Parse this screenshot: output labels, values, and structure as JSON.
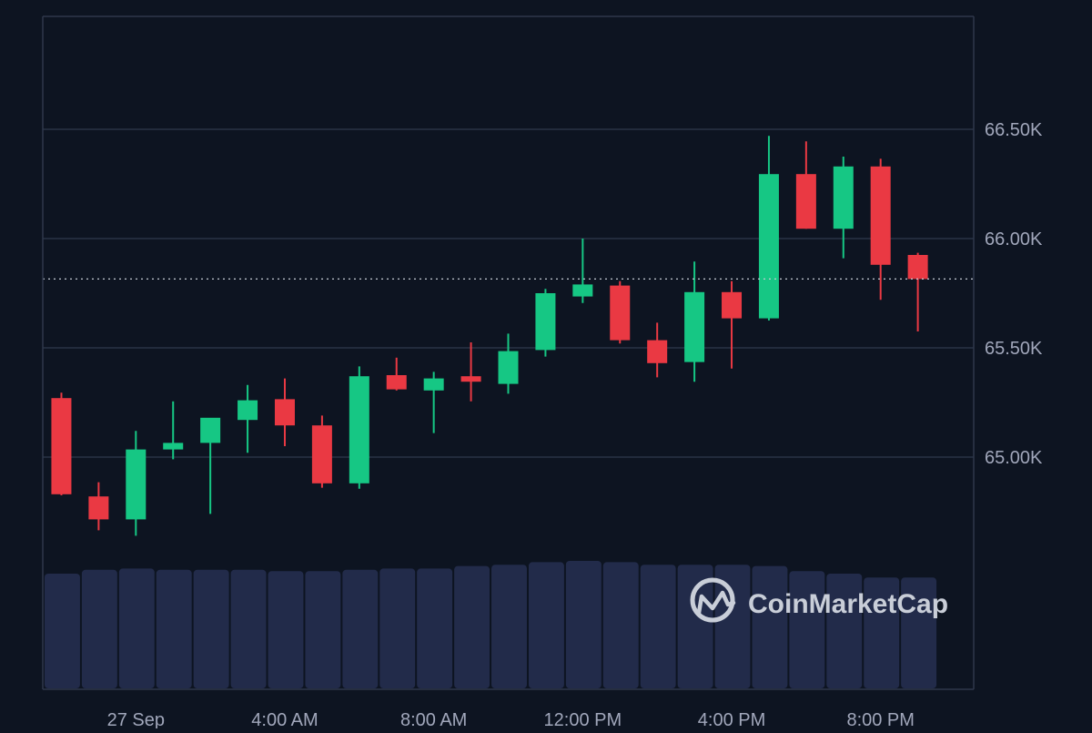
{
  "chart_data": {
    "type": "candlestick",
    "title": "",
    "xlabel": "",
    "ylabel": "",
    "x_ticks": [
      "27 Sep",
      "4:00 AM",
      "8:00 AM",
      "12:00 PM",
      "4:00 PM",
      "8:00 PM"
    ],
    "y_ticks": [
      {
        "value": 65000,
        "label": "65.00K"
      },
      {
        "value": 65500,
        "label": "65.50K"
      },
      {
        "value": 66000,
        "label": "66.00K"
      },
      {
        "value": 66500,
        "label": "66.50K"
      }
    ],
    "ylim": [
      64500,
      67000
    ],
    "current_price": 65815,
    "up_color": "#16c784",
    "down_color": "#ea3943",
    "volume_color": "#222b4a",
    "grid": true,
    "candles": [
      {
        "open": 65270,
        "high": 65295,
        "low": 64825,
        "close": 64830
      },
      {
        "open": 64820,
        "high": 64885,
        "low": 64665,
        "close": 64715
      },
      {
        "open": 64715,
        "high": 65120,
        "low": 64640,
        "close": 65035
      },
      {
        "open": 65035,
        "high": 65255,
        "low": 64990,
        "close": 65065
      },
      {
        "open": 65065,
        "high": 65175,
        "low": 64740,
        "close": 65180
      },
      {
        "open": 65170,
        "high": 65330,
        "low": 65020,
        "close": 65260
      },
      {
        "open": 65265,
        "high": 65360,
        "low": 65050,
        "close": 65145
      },
      {
        "open": 65145,
        "high": 65190,
        "low": 64860,
        "close": 64880
      },
      {
        "open": 64880,
        "high": 65415,
        "low": 64855,
        "close": 65370
      },
      {
        "open": 65375,
        "high": 65455,
        "low": 65305,
        "close": 65310
      },
      {
        "open": 65305,
        "high": 65390,
        "low": 65110,
        "close": 65360
      },
      {
        "open": 65370,
        "high": 65525,
        "low": 65255,
        "close": 65345
      },
      {
        "open": 65335,
        "high": 65565,
        "low": 65290,
        "close": 65485
      },
      {
        "open": 65490,
        "high": 65770,
        "low": 65460,
        "close": 65750
      },
      {
        "open": 65735,
        "high": 66000,
        "low": 65705,
        "close": 65790
      },
      {
        "open": 65785,
        "high": 65805,
        "low": 65520,
        "close": 65535
      },
      {
        "open": 65535,
        "high": 65615,
        "low": 65365,
        "close": 65430
      },
      {
        "open": 65435,
        "high": 65895,
        "low": 65345,
        "close": 65755
      },
      {
        "open": 65755,
        "high": 65805,
        "low": 65405,
        "close": 65635
      },
      {
        "open": 65635,
        "high": 66470,
        "low": 65625,
        "close": 66295
      },
      {
        "open": 66295,
        "high": 66445,
        "low": 66045,
        "close": 66045
      },
      {
        "open": 66045,
        "high": 66375,
        "low": 65910,
        "close": 66330
      },
      {
        "open": 66330,
        "high": 66365,
        "low": 65720,
        "close": 65880
      },
      {
        "open": 65925,
        "high": 65935,
        "low": 65575,
        "close": 65815
      }
    ],
    "volume_relative": [
      0.9,
      0.93,
      0.94,
      0.93,
      0.93,
      0.93,
      0.92,
      0.92,
      0.93,
      0.94,
      0.94,
      0.96,
      0.97,
      0.99,
      1.0,
      0.99,
      0.97,
      0.97,
      0.97,
      0.96,
      0.92,
      0.9,
      0.87,
      0.87
    ]
  },
  "watermark": {
    "text": "CoinMarketCap",
    "color": "#c9ced8"
  }
}
